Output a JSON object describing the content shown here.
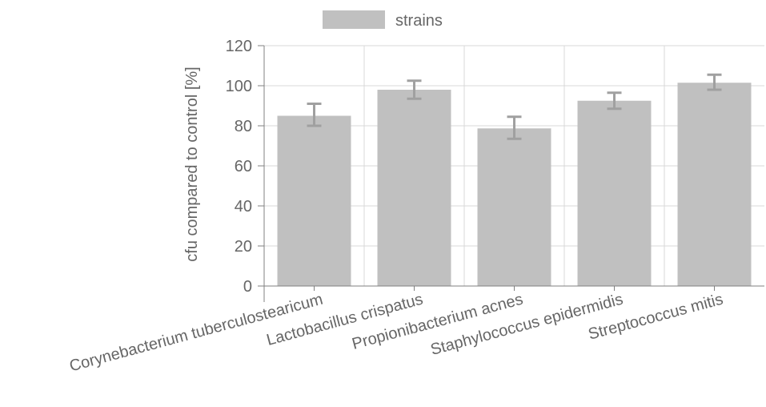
{
  "chart_data": {
    "type": "bar",
    "title": "",
    "xlabel": "",
    "ylabel": "cfu compared to control [%]",
    "ylim": [
      0,
      120
    ],
    "yticks": [
      0,
      20,
      40,
      60,
      80,
      100,
      120
    ],
    "grid": true,
    "legend_position": "top",
    "categories": [
      "Corynebacterium tuberculostearicum",
      "Lactobacillus crispatus",
      "Propionibacterium acnes",
      "Staphylococcus epidermidis",
      "Streptococcus mitis"
    ],
    "series": [
      {
        "name": "strains",
        "color": "#c0c0c0",
        "values": [
          85,
          98,
          78.7,
          92.5,
          101.5
        ],
        "error_low": [
          80,
          93.5,
          73.5,
          88.5,
          98
        ],
        "error_high": [
          91,
          102.5,
          84.5,
          96.5,
          105.5
        ]
      }
    ],
    "colors": {
      "bar": "#c0c0c0",
      "error_bar": "#a0a0a0",
      "grid": "#d9d9d9",
      "axis": "#808080",
      "text": "#666666"
    }
  }
}
